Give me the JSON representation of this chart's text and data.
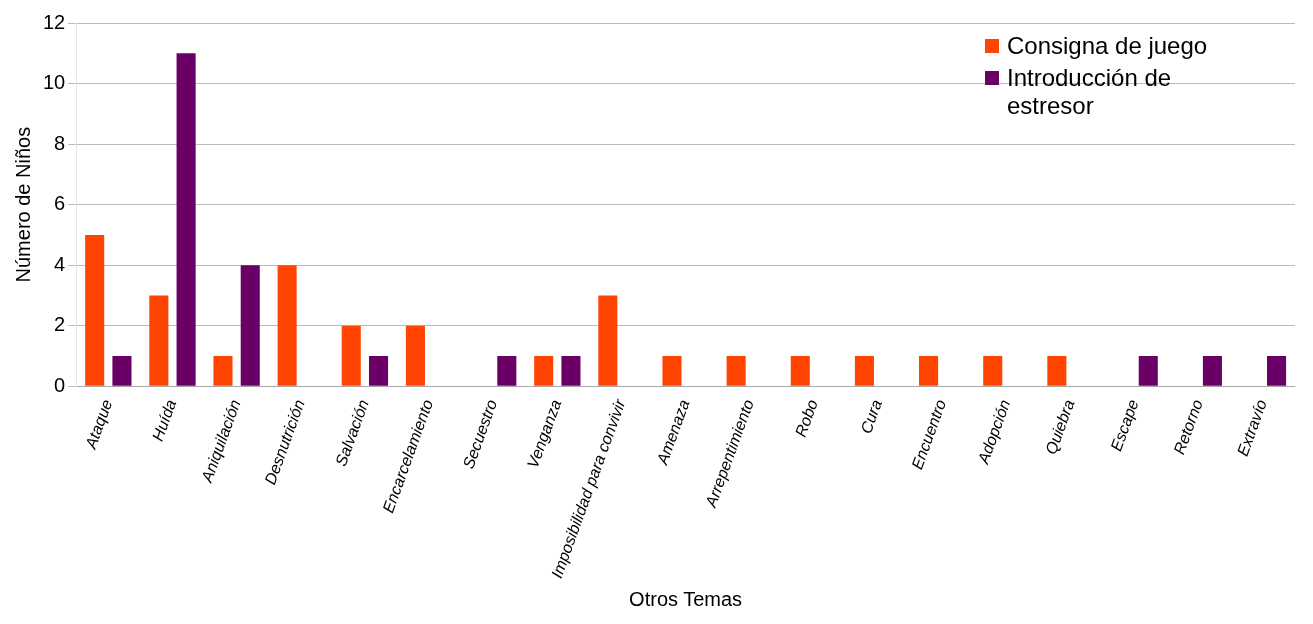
{
  "chart_data": {
    "type": "bar",
    "xlabel": "Otros Temas",
    "ylabel": "Número de Niños",
    "categories": [
      "Ataque",
      "Huída",
      "Aniquilación",
      "Desnutrición",
      "Salvación",
      "Encarcelamiento",
      "Secuestro",
      "Venganza",
      "Imposibilidad para convivir",
      "Amenaza",
      "Arrepentimiento",
      "Robo",
      "Cura",
      "Encuentro",
      "Adopción",
      "Quiebra",
      "Escape",
      "Retorno",
      "Extravío"
    ],
    "series": [
      {
        "name": "Consigna de juego",
        "color": "#ff4500",
        "values": [
          5,
          3,
          1,
          4,
          2,
          2,
          null,
          1,
          3,
          1,
          1,
          1,
          1,
          1,
          1,
          1,
          null,
          null,
          null
        ]
      },
      {
        "name": "Introducción de estresor",
        "color": "#6a0066",
        "values": [
          1,
          11,
          4,
          null,
          1,
          null,
          1,
          1,
          null,
          null,
          null,
          null,
          null,
          null,
          null,
          null,
          1,
          1,
          1
        ]
      }
    ],
    "ylim": [
      0,
      12
    ],
    "yticks": [
      0,
      2,
      4,
      6,
      8,
      10,
      12
    ],
    "grid": "y",
    "legend": "top right"
  }
}
